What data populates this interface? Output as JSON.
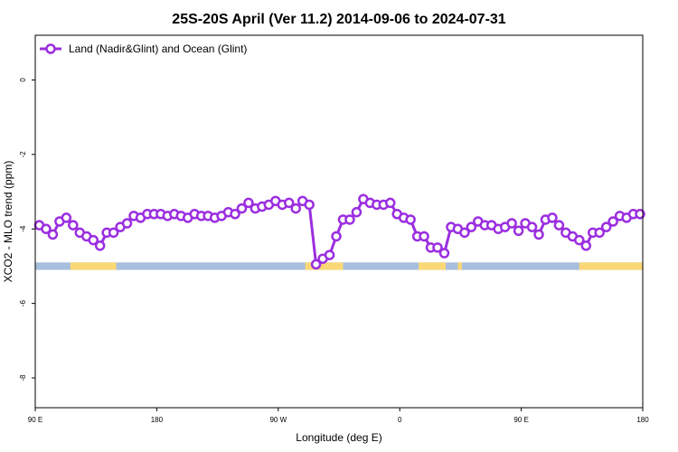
{
  "chart_data": {
    "type": "line",
    "title": "25S-20S April (Ver 11.2)   2014-09-06 to 2024-07-31",
    "xlabel": "Longitude (deg E)",
    "ylabel": "XCO2 - MLO trend (ppm)",
    "x_ticks": [
      {
        "value": 90,
        "label": "90 E"
      },
      {
        "value": 180,
        "label": "180"
      },
      {
        "value": 270,
        "label": "90 W"
      },
      {
        "value": 360,
        "label": "0"
      },
      {
        "value": 450,
        "label": "90 E"
      },
      {
        "value": 540,
        "label": "180"
      }
    ],
    "y_ticks": [
      {
        "value": 0,
        "label": "0"
      },
      {
        "value": -2,
        "label": "-2"
      },
      {
        "value": -4,
        "label": "-4"
      },
      {
        "value": -6,
        "label": "-6"
      },
      {
        "value": -8,
        "label": "-8"
      }
    ],
    "xlim": [
      90,
      540
    ],
    "ylim": [
      -8.8,
      1.2
    ],
    "grid": false,
    "legend": {
      "position": "top-left"
    },
    "land_ocean_band": {
      "y_range": [
        -5.1,
        -4.9
      ],
      "ocean_color": "#a8bedd",
      "land_color": "#fbd877",
      "land_segments": [
        [
          116,
          150
        ],
        [
          290,
          318
        ],
        [
          374,
          394
        ],
        [
          403,
          406
        ],
        [
          493,
          551
        ]
      ]
    },
    "series": [
      {
        "name": "Land (Nadir&Glint) and Ocean (Glint)",
        "color": "#9b2ee0",
        "x": [
          93,
          98,
          103,
          108,
          113,
          118,
          123,
          128,
          133,
          138,
          143,
          148,
          153,
          158,
          163,
          168,
          173,
          178,
          183,
          188,
          193,
          198,
          203,
          208,
          213,
          218,
          223,
          228,
          233,
          238,
          243,
          248,
          253,
          258,
          263,
          268,
          273,
          278,
          283,
          288,
          293,
          298,
          303,
          308,
          313,
          318,
          323,
          328,
          333,
          338,
          343,
          348,
          353,
          358,
          363,
          368,
          373,
          378,
          383,
          388,
          393,
          398,
          403,
          408,
          413,
          418,
          423,
          428,
          433,
          438,
          443,
          448,
          453,
          458,
          463,
          468,
          473,
          478,
          483,
          488,
          493,
          498,
          503,
          508,
          513,
          518,
          523,
          528,
          533,
          538
        ],
        "y": [
          -3.9,
          -4.0,
          -4.15,
          -3.8,
          -3.7,
          -3.9,
          -4.1,
          -4.2,
          -4.3,
          -4.45,
          -4.1,
          -4.1,
          -3.95,
          -3.85,
          -3.65,
          -3.7,
          -3.6,
          -3.6,
          -3.6,
          -3.65,
          -3.6,
          -3.65,
          -3.7,
          -3.6,
          -3.65,
          -3.65,
          -3.7,
          -3.65,
          -3.55,
          -3.6,
          -3.45,
          -3.3,
          -3.45,
          -3.4,
          -3.35,
          -3.25,
          -3.35,
          -3.3,
          -3.45,
          -3.25,
          -3.35,
          -4.95,
          -4.8,
          -4.7,
          -4.2,
          -3.75,
          -3.75,
          -3.55,
          -3.2,
          -3.3,
          -3.35,
          -3.35,
          -3.3,
          -3.6,
          -3.7,
          -3.75,
          -4.2,
          -4.2,
          -4.5,
          -4.5,
          -4.65,
          -3.95,
          -4.0,
          -4.1,
          -3.95,
          -3.8,
          -3.9,
          -3.9,
          -4.0,
          -3.95,
          -3.85,
          -4.05,
          -3.85,
          -3.95,
          -4.15,
          -3.75,
          -3.7,
          -3.9,
          -4.1,
          -4.2,
          -4.3,
          -4.45,
          -4.1,
          -4.1,
          -3.95,
          -3.8,
          -3.65,
          -3.7,
          -3.6,
          -3.6
        ]
      }
    ]
  }
}
